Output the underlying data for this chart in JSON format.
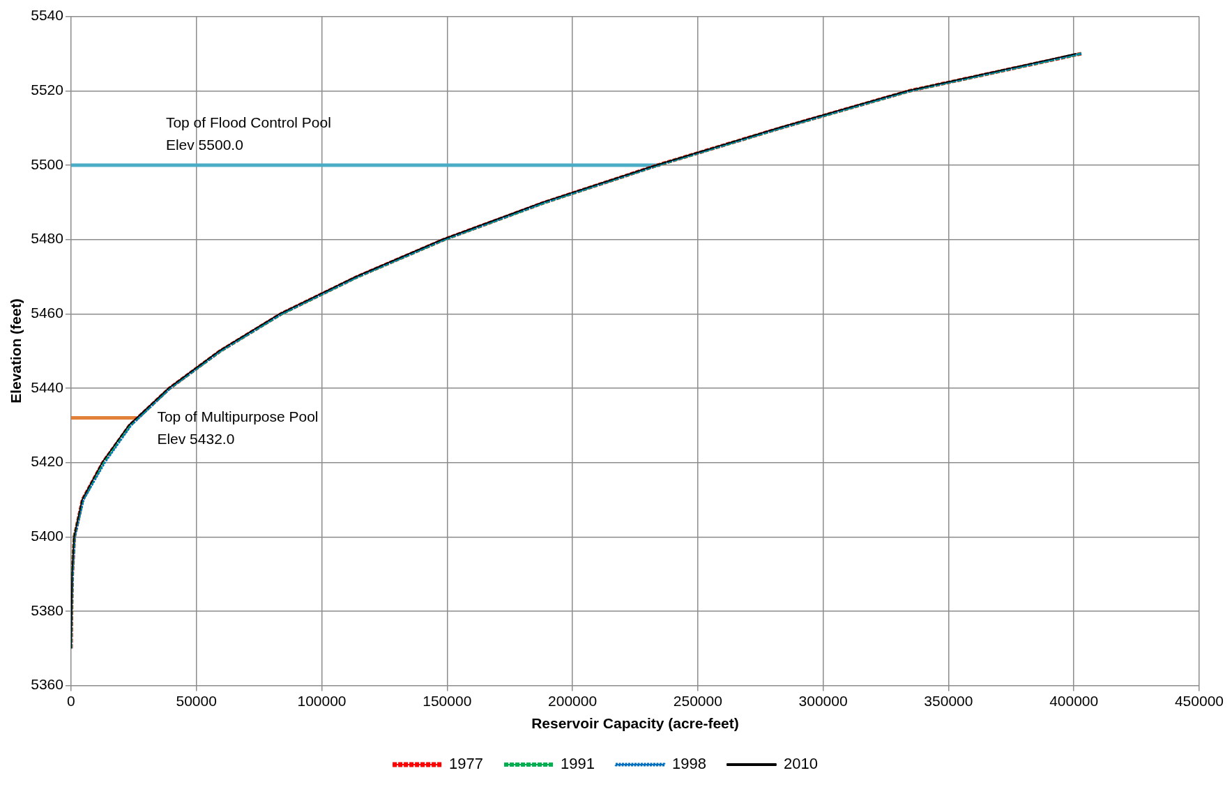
{
  "chart_data": {
    "type": "line",
    "xlabel": "Reservoir Capacity (acre-feet)",
    "ylabel": "Elevation (feet)",
    "xlim": [
      0,
      450000
    ],
    "xticks": [
      0,
      50000,
      100000,
      150000,
      200000,
      250000,
      300000,
      350000,
      400000,
      450000
    ],
    "ylim": [
      5360,
      5540
    ],
    "yticks": [
      5360,
      5380,
      5400,
      5420,
      5440,
      5460,
      5480,
      5500,
      5520,
      5540
    ],
    "grid": true,
    "legend": "bottom",
    "marker": "none",
    "series": [
      {
        "name": "1977",
        "color": "#ff0000",
        "line_style": "dashed",
        "x": [
          0,
          200,
          500,
          1300,
          4600,
          12700,
          23400,
          39300,
          59500,
          83800,
          114200,
          148800,
          189000,
          234000,
          283000,
          334500,
          403000
        ],
        "values": [
          5370,
          5380,
          5390,
          5400,
          5410,
          5420,
          5430,
          5440,
          5450,
          5460,
          5470,
          5480,
          5490,
          5500,
          5510,
          5520,
          5530
        ]
      },
      {
        "name": "1991",
        "color": "#00b050",
        "line_style": "dashed",
        "x": [
          0,
          200,
          500,
          1300,
          4700,
          12900,
          23500,
          39400,
          59600,
          84000,
          114400,
          149000,
          189200,
          234200,
          283200,
          334700,
          403000
        ],
        "values": [
          5370,
          5380,
          5390,
          5400,
          5410,
          5420,
          5430,
          5440,
          5450,
          5460,
          5470,
          5480,
          5490,
          5500,
          5510,
          5520,
          5530
        ]
      },
      {
        "name": "1998",
        "color": "#0070c0",
        "line_style": "dotted",
        "x": [
          0,
          200,
          600,
          1500,
          5000,
          13500,
          24000,
          39600,
          59700,
          84100,
          114500,
          149100,
          189300,
          234300,
          283300,
          334800,
          403000
        ],
        "values": [
          5370,
          5380,
          5390,
          5400,
          5410,
          5420,
          5430,
          5440,
          5450,
          5460,
          5470,
          5480,
          5490,
          5500,
          5510,
          5520,
          5530
        ]
      },
      {
        "name": "2010",
        "color": "#000000",
        "line_style": "solid",
        "x": [
          0,
          200,
          400,
          1200,
          4400,
          12400,
          23000,
          38900,
          59000,
          83200,
          113600,
          148000,
          188000,
          233400,
          282000,
          333500,
          401000
        ],
        "values": [
          5370,
          5380,
          5390,
          5400,
          5410,
          5420,
          5430,
          5440,
          5450,
          5460,
          5470,
          5480,
          5490,
          5500,
          5510,
          5520,
          5530
        ]
      },
      {
        "color": "#4bacc6",
        "line_style": "solid",
        "x": [
          0,
          235000
        ],
        "values": [
          5500,
          5500
        ]
      },
      {
        "color": "#e2823a",
        "line_style": "solid",
        "x": [
          0,
          26000
        ],
        "values": [
          5432,
          5432
        ]
      }
    ],
    "annotations": [
      "Top of Flood Control Pool\nElev 5500.0",
      "Top of Multipurpose Pool\nElev 5432.0"
    ]
  }
}
